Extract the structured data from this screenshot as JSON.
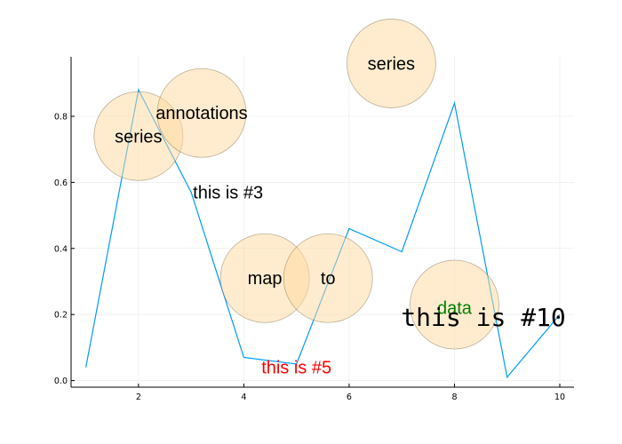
{
  "chart_data": {
    "type": "line",
    "title": "",
    "xlabel": "",
    "ylabel": "",
    "xlim": [
      0.72,
      10.27
    ],
    "ylim": [
      -0.02,
      0.98
    ],
    "grid": true,
    "legend": "none",
    "x_ticks": [
      2,
      4,
      6,
      8,
      10
    ],
    "x_tick_labels": [
      "2",
      "4",
      "6",
      "8",
      "10"
    ],
    "y_ticks": [
      0.0,
      0.2,
      0.4,
      0.6,
      0.8
    ],
    "y_tick_labels": [
      "0.0",
      "0.2",
      "0.4",
      "0.6",
      "0.8"
    ],
    "series": [
      {
        "color": "#009AF9",
        "x": [
          1,
          2,
          3,
          4,
          5,
          6,
          7,
          8,
          9,
          10
        ],
        "y": [
          0.04,
          0.88,
          0.57,
          0.07,
          0.05,
          0.46,
          0.39,
          0.84,
          0.01,
          0.2
        ]
      }
    ],
    "circles": [
      {
        "x": 2.0,
        "y": 0.74,
        "size": "large",
        "fill": "#FFD9A0",
        "opacity": 0.5
      },
      {
        "x": 3.2,
        "y": 0.81,
        "size": "large",
        "fill": "#FFD9A0",
        "opacity": 0.5
      },
      {
        "x": 4.4,
        "y": 0.31,
        "size": "large",
        "fill": "#FFD9A0",
        "opacity": 0.5
      },
      {
        "x": 5.6,
        "y": 0.31,
        "size": "large",
        "fill": "#FFD9A0",
        "opacity": 0.5
      },
      {
        "x": 6.8,
        "y": 0.96,
        "size": "large",
        "fill": "#FFD9A0",
        "opacity": 0.5
      },
      {
        "x": 8.0,
        "y": 0.23,
        "size": "large",
        "fill": "#FFD9A0",
        "opacity": 0.5
      }
    ],
    "annotations": [
      {
        "text": "series",
        "x": 2.0,
        "y": 0.74,
        "color": "#000000",
        "font": "sans",
        "size": "medium"
      },
      {
        "text": "annotations",
        "x": 3.2,
        "y": 0.81,
        "color": "#000000",
        "font": "sans",
        "size": "medium"
      },
      {
        "text": "series",
        "x": 6.8,
        "y": 0.96,
        "color": "#000000",
        "font": "sans",
        "size": "medium"
      },
      {
        "text": "this is #3",
        "x": 3.7,
        "y": 0.57,
        "color": "#000000",
        "font": "sans",
        "size": "medium"
      },
      {
        "text": "map",
        "x": 4.4,
        "y": 0.31,
        "color": "#000000",
        "font": "sans",
        "size": "medium"
      },
      {
        "text": "to",
        "x": 5.6,
        "y": 0.31,
        "color": "#000000",
        "font": "sans",
        "size": "medium"
      },
      {
        "text": "data",
        "x": 8.0,
        "y": 0.22,
        "color": "#008000",
        "font": "sans",
        "size": "medium"
      },
      {
        "text": "this is #10",
        "x": 8.55,
        "y": 0.19,
        "color": "#000000",
        "font": "mono",
        "size": "large"
      },
      {
        "text": "this is #5",
        "x": 5.0,
        "y": 0.04,
        "color": "#FF0000",
        "font": "sans",
        "size": "medium"
      }
    ]
  }
}
